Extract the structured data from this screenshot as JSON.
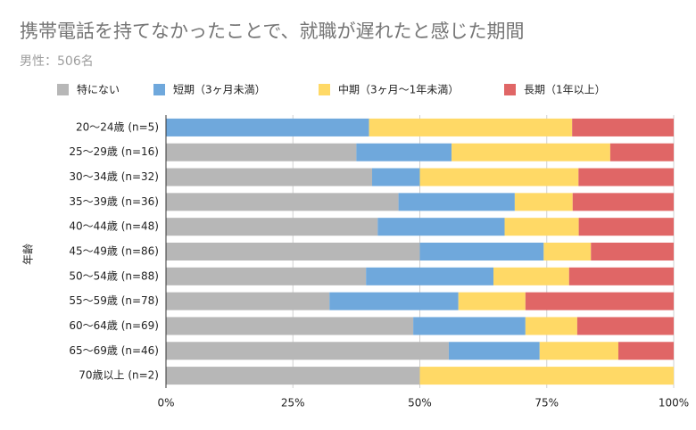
{
  "chart_data": {
    "type": "stacked-bar-horizontal",
    "title": "携帯電話を持てなかったことで、就職が遅れたと感じた期間",
    "subtitle": "男性：506名",
    "y_label": "年齢",
    "categories": [
      "20〜24歳 (n=5)",
      "25〜29歳 (n=16)",
      "30〜34歳 (n=32)",
      "35〜39歳 (n=36)",
      "40〜44歳 (n=48)",
      "45〜49歳 (n=86)",
      "50〜54歳 (n=88)",
      "55〜59歳 (n=78)",
      "60〜64歳 (n=69)",
      "65〜69歳 (n=46)",
      "70歳以上 (n=2)"
    ],
    "series": [
      {
        "name": "特にない",
        "color": "#b7b7b7",
        "values": [
          0,
          37.5,
          40.6,
          45.8,
          41.7,
          50,
          39.4,
          32.2,
          48.7,
          55.7,
          50
        ]
      },
      {
        "name": "短期（3ヶ月未満）",
        "color": "#6fa8dc",
        "values": [
          40,
          18.75,
          9.4,
          22.9,
          25,
          24.4,
          25.1,
          25.4,
          22.1,
          17.9,
          0
        ]
      },
      {
        "name": "中期（3ヶ月〜1年未満）",
        "color": "#ffd966",
        "values": [
          40,
          31.25,
          31.25,
          11.4,
          14.6,
          9.3,
          14.9,
          13.2,
          10.2,
          15.5,
          50
        ]
      },
      {
        "name": "長期（1年以上）",
        "color": "#e06666",
        "values": [
          20,
          12.5,
          18.75,
          19.9,
          18.7,
          16.3,
          20.6,
          29.2,
          19,
          10.9,
          0
        ]
      }
    ],
    "xlim": [
      0,
      100
    ],
    "xticks": [
      {
        "value": 0,
        "label": "0%"
      },
      {
        "value": 25,
        "label": "25%"
      },
      {
        "value": 50,
        "label": "50%"
      },
      {
        "value": 75,
        "label": "75%"
      },
      {
        "value": 100,
        "label": "100%"
      }
    ],
    "grid": true,
    "legend": "top"
  }
}
